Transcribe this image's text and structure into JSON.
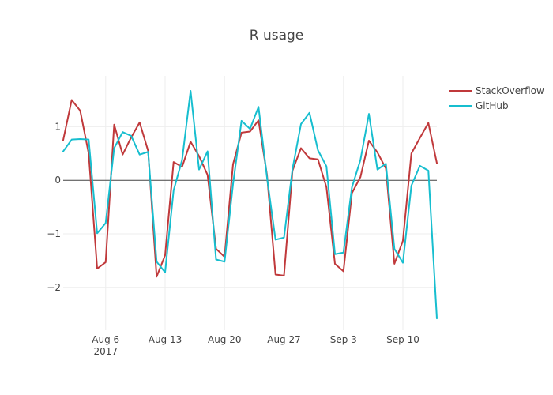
{
  "chart_data": {
    "type": "line",
    "title": "R usage",
    "xlabel": "",
    "ylabel": "",
    "x_ticks": [
      {
        "date": "2017-08-06",
        "label": "Aug 6",
        "sublabel": "2017"
      },
      {
        "date": "2017-08-13",
        "label": "Aug 13",
        "sublabel": ""
      },
      {
        "date": "2017-08-20",
        "label": "Aug 20",
        "sublabel": ""
      },
      {
        "date": "2017-08-27",
        "label": "Aug 27",
        "sublabel": ""
      },
      {
        "date": "2017-09-03",
        "label": "Sep 3",
        "sublabel": ""
      },
      {
        "date": "2017-09-10",
        "label": "Sep 10",
        "sublabel": ""
      }
    ],
    "y_ticks": [
      {
        "value": 1,
        "label": "1"
      },
      {
        "value": 0,
        "label": "0"
      },
      {
        "value": -1,
        "label": "−1"
      },
      {
        "value": -2,
        "label": "−2"
      }
    ],
    "xlim": [
      "2017-08-01",
      "2017-09-14"
    ],
    "ylim": [
      -2.8,
      1.95
    ],
    "grid": true,
    "zeroline": true,
    "legend_position": "top-right",
    "x": [
      "2017-08-01",
      "2017-08-02",
      "2017-08-03",
      "2017-08-04",
      "2017-08-05",
      "2017-08-06",
      "2017-08-07",
      "2017-08-08",
      "2017-08-09",
      "2017-08-10",
      "2017-08-11",
      "2017-08-12",
      "2017-08-13",
      "2017-08-14",
      "2017-08-15",
      "2017-08-16",
      "2017-08-17",
      "2017-08-18",
      "2017-08-19",
      "2017-08-20",
      "2017-08-21",
      "2017-08-22",
      "2017-08-23",
      "2017-08-24",
      "2017-08-25",
      "2017-08-26",
      "2017-08-27",
      "2017-08-28",
      "2017-08-29",
      "2017-08-30",
      "2017-08-31",
      "2017-09-01",
      "2017-09-02",
      "2017-09-03",
      "2017-09-04",
      "2017-09-05",
      "2017-09-06",
      "2017-09-07",
      "2017-09-08",
      "2017-09-09",
      "2017-09-10",
      "2017-09-11",
      "2017-09-12",
      "2017-09-13",
      "2017-09-14"
    ],
    "series": [
      {
        "name": "StackOverflow",
        "color": "#c0393b",
        "values": [
          0.75,
          1.5,
          1.3,
          0.5,
          -1.65,
          -1.53,
          1.04,
          0.48,
          0.8,
          1.08,
          0.55,
          -1.8,
          -1.4,
          0.34,
          0.25,
          0.72,
          0.45,
          0.1,
          -1.28,
          -1.43,
          0.3,
          0.89,
          0.91,
          1.12,
          0.1,
          -1.76,
          -1.78,
          0.18,
          0.6,
          0.41,
          0.39,
          -0.13,
          -1.56,
          -1.7,
          -0.24,
          0.06,
          0.74,
          0.52,
          0.22,
          -1.56,
          -1.13,
          0.5,
          0.79,
          1.07,
          0.32
        ]
      },
      {
        "name": "GitHub",
        "color": "#17becf",
        "values": [
          0.54,
          0.76,
          0.77,
          0.76,
          -0.99,
          -0.8,
          0.6,
          0.9,
          0.83,
          0.48,
          0.53,
          -1.52,
          -1.72,
          -0.19,
          0.38,
          1.67,
          0.2,
          0.54,
          -1.48,
          -1.52,
          -0.07,
          1.11,
          0.96,
          1.37,
          0.05,
          -1.11,
          -1.07,
          0.21,
          1.05,
          1.26,
          0.56,
          0.26,
          -1.38,
          -1.35,
          -0.13,
          0.38,
          1.24,
          0.2,
          0.31,
          -1.28,
          -1.54,
          -0.1,
          0.27,
          0.18,
          -2.58
        ]
      }
    ]
  }
}
